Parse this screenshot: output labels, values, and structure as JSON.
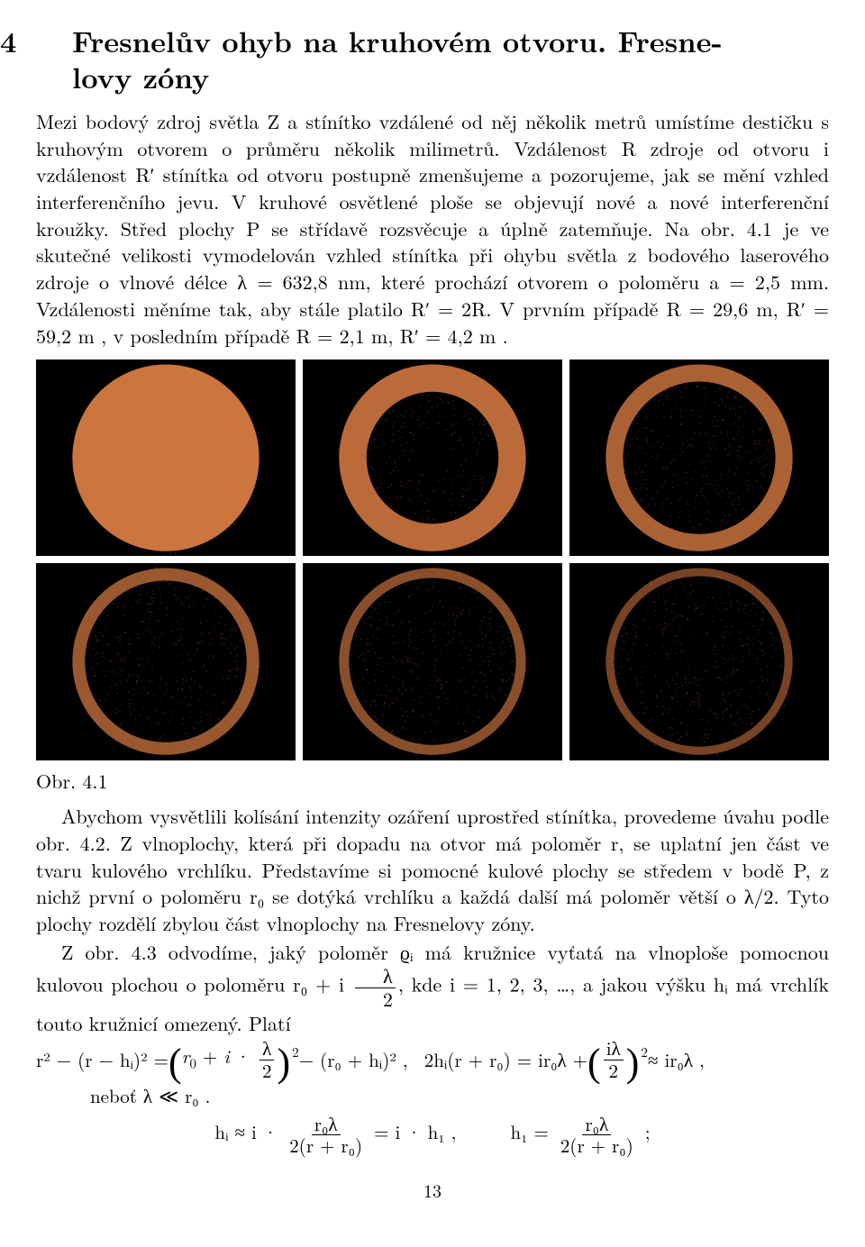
{
  "section": {
    "number": "4",
    "title_line1": "Fresnelův ohyb na kruhovém otvoru. Fresne-",
    "title_line2": "lovy zóny"
  },
  "para1": "Mezi bodový zdroj světla Z a stínítko vzdálené od něj několik metrů umístíme destičku s kruhovým otvorem o průměru několik milimetrů. Vzdálenost R zdroje od otvoru i vzdálenost R′ stínítka od otvoru postupně zmenšujeme a pozorujeme, jak se mění vzhled interferenčního jevu. V kruhové osvětlené ploše se objevují nové a nové interferenční kroužky. Střed plochy P se střídavě rozsvěcuje a úplně zatemňuje. Na obr. 4.1 je ve skutečné velikosti vymodelován vzhled stínítka při ohybu světla z bodového laserového zdroje o vlnové délce λ = 632,8 nm, které prochází otvorem o poloměru a = 2,5 mm. Vzdálenosti měníme tak, aby stále platilo R′ = 2R. V prvním případě R = 29,6 m, R′ = 59,2 m , v posledním případě R = 2,1 m, R′ = 4,2 m .",
  "figure": {
    "label": "Obr. 4.1",
    "background": "#000000",
    "ring_color": "#f38b4b",
    "speckle_color": "#d06a2f",
    "tiles": [
      {
        "zones": 1,
        "center_bright": true
      },
      {
        "zones": 2,
        "center_bright": false
      },
      {
        "zones": 3,
        "center_bright": true
      },
      {
        "zones": 4,
        "center_bright": false
      },
      {
        "zones": 5,
        "center_bright": true
      },
      {
        "zones": 6,
        "center_bright": false
      }
    ]
  },
  "para2": "Abychom vysvětlili kolísání intenzity ozáření uprostřed stínítka, provedeme úvahu podle obr. 4.2. Z vlnoplochy, která při dopadu na otvor má poloměr r, se uplatní jen část ve tvaru kulového vrchlíku. Představíme si pomocné kulové plochy se středem v bodě P, z nichž první o poloměru r₀ se dotýká vrchlíku a každá další má poloměr větší o λ/2. Tyto plochy rozdělí zbylou část vlnoplochy na Fresnelovy zóny.",
  "para3_a": "Z obr. 4.3 odvodíme, jaký poloměr ϱᵢ má kružnice vyťatá na vlnoploše pomocnou kulovou plochou o poloměru r₀ + i",
  "para3_b": ", kde i = 1, 2, 3, …, a jakou výšku hᵢ má vrchlík touto kružnicí omezený. Platí",
  "eq": {
    "frac_lambda2_num": "λ",
    "frac_lambda2_den": "2",
    "line1_L": "r² − (r − hᵢ)² =",
    "line1_M": " − (r₀ + hᵢ)² ,",
    "line1_R1": "2hᵢ(r + r₀) = ir₀λ + ",
    "frac_ilambda2_num": "iλ",
    "line1_R2": " ≈ ir₀λ ,",
    "nebot": "neboť λ ≪ r₀ .",
    "hi_lhs": "hᵢ ≈ i ·",
    "frac_r0l_num": "r₀λ",
    "frac_r0l_den": "2(r + r₀)",
    "hi_mid": " = i · h₁ ,",
    "h1_lhs": "h₁ =",
    "h1_tail": " ;"
  },
  "page_number": "13"
}
